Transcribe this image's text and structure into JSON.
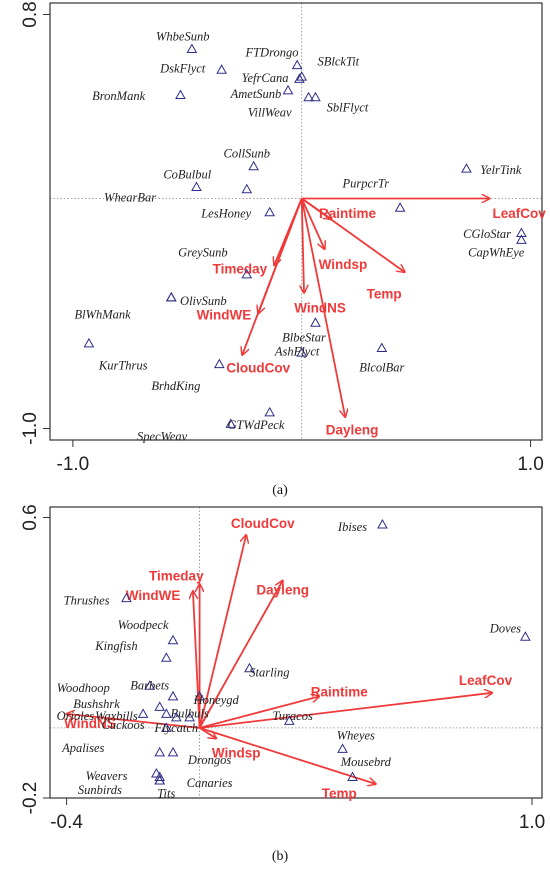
{
  "chart_data": [
    {
      "type": "scatter",
      "title": "",
      "caption": "(a)",
      "xlim": [
        -1.1,
        1.05
      ],
      "ylim": [
        -1.05,
        0.85
      ],
      "xticks": [
        -1.0,
        1.0
      ],
      "xtick_labels": [
        "-1.0",
        "1.0"
      ],
      "yticks": [
        0.8,
        -1.0
      ],
      "ytick_labels": [
        "0.8",
        "-1.0"
      ],
      "species": [
        {
          "name": "WhbeSunb",
          "x": -0.48,
          "y": 0.65,
          "lx": -0.52,
          "ly": 0.7,
          "anchor": "middle"
        },
        {
          "name": "DskFlyct",
          "x": -0.35,
          "y": 0.56,
          "lx": -0.52,
          "ly": 0.56,
          "anchor": "middle"
        },
        {
          "name": "FTDrongo",
          "x": -0.02,
          "y": 0.58,
          "lx": -0.13,
          "ly": 0.63,
          "anchor": "middle"
        },
        {
          "name": "SBlckTit",
          "x": 0.0,
          "y": 0.53,
          "lx": 0.16,
          "ly": 0.59,
          "anchor": "middle"
        },
        {
          "name": "YefrCana",
          "x": -0.01,
          "y": 0.52,
          "lx": -0.16,
          "ly": 0.52,
          "anchor": "middle"
        },
        {
          "name": "BronMank",
          "x": -0.53,
          "y": 0.45,
          "lx": -0.8,
          "ly": 0.44,
          "anchor": "middle"
        },
        {
          "name": "AmetSunb",
          "x": -0.06,
          "y": 0.47,
          "lx": -0.2,
          "ly": 0.45,
          "anchor": "middle"
        },
        {
          "name": "VillWeav",
          "x": 0.03,
          "y": 0.44,
          "lx": -0.14,
          "ly": 0.37,
          "anchor": "middle"
        },
        {
          "name": "SblFlyct",
          "x": 0.06,
          "y": 0.44,
          "lx": 0.2,
          "ly": 0.39,
          "anchor": "middle"
        },
        {
          "name": "CollSunb",
          "x": -0.21,
          "y": 0.14,
          "lx": -0.24,
          "ly": 0.19,
          "anchor": "middle"
        },
        {
          "name": "CoBulbul",
          "x": -0.46,
          "y": 0.05,
          "lx": -0.5,
          "ly": 0.1,
          "anchor": "middle"
        },
        {
          "name": "WhearBar",
          "x": -0.24,
          "y": 0.04,
          "lx": -0.75,
          "ly": 0.0,
          "anchor": "middle"
        },
        {
          "name": "LesHoney",
          "x": -0.14,
          "y": -0.06,
          "lx": -0.33,
          "ly": -0.07,
          "anchor": "middle"
        },
        {
          "name": "PurpcrTr",
          "x": 0.43,
          "y": -0.04,
          "lx": 0.28,
          "ly": 0.06,
          "anchor": "middle"
        },
        {
          "name": "YelrTink",
          "x": 0.72,
          "y": 0.13,
          "lx": 0.87,
          "ly": 0.12,
          "anchor": "middle"
        },
        {
          "name": "CGloStar",
          "x": 0.96,
          "y": -0.15,
          "lx": 0.81,
          "ly": -0.16,
          "anchor": "middle"
        },
        {
          "name": "CapWhEye",
          "x": 0.96,
          "y": -0.18,
          "lx": 0.85,
          "ly": -0.24,
          "anchor": "middle"
        },
        {
          "name": "GreySunb",
          "x": -0.24,
          "y": -0.33,
          "lx": -0.54,
          "ly": -0.24,
          "anchor": "start"
        },
        {
          "name": "OlivSunb",
          "x": -0.57,
          "y": -0.43,
          "lx": -0.43,
          "ly": -0.45,
          "anchor": "middle"
        },
        {
          "name": "BlWhMank",
          "x": -0.57,
          "y": -0.43,
          "lx": -0.87,
          "ly": -0.51,
          "anchor": "middle"
        },
        {
          "name": "BlbeStar",
          "x": 0.06,
          "y": -0.54,
          "lx": 0.01,
          "ly": -0.61,
          "anchor": "middle"
        },
        {
          "name": "AshFlyct",
          "x": 0.0,
          "y": -0.67,
          "lx": -0.02,
          "ly": -0.67,
          "anchor": "middle"
        },
        {
          "name": "KurThrus",
          "x": -0.93,
          "y": -0.63,
          "lx": -0.78,
          "ly": -0.73,
          "anchor": "middle"
        },
        {
          "name": "BrhdKing",
          "x": -0.36,
          "y": -0.72,
          "lx": -0.55,
          "ly": -0.82,
          "anchor": "middle"
        },
        {
          "name": "BlcolBar",
          "x": 0.35,
          "y": -0.65,
          "lx": 0.35,
          "ly": -0.74,
          "anchor": "middle"
        },
        {
          "name": "GTWdPeck",
          "x": -0.14,
          "y": -0.93,
          "lx": -0.2,
          "ly": -0.99,
          "anchor": "middle"
        },
        {
          "name": "SpecWeav",
          "x": -0.31,
          "y": -0.98,
          "lx": -0.61,
          "ly": -1.04,
          "anchor": "middle"
        }
      ],
      "vectors": [
        {
          "name": "LeafCov",
          "x": 0.82,
          "y": 0.0,
          "lx": 0.95,
          "ly": -0.07
        },
        {
          "name": "Raintime",
          "x": 0.13,
          "y": -0.09,
          "lx": 0.2,
          "ly": -0.07
        },
        {
          "name": "Windsp",
          "x": 0.1,
          "y": -0.22,
          "lx": 0.18,
          "ly": -0.29
        },
        {
          "name": "Temp",
          "x": 0.45,
          "y": -0.32,
          "lx": 0.36,
          "ly": -0.42
        },
        {
          "name": "WindNS",
          "x": 0.01,
          "y": -0.41,
          "lx": 0.08,
          "ly": -0.48
        },
        {
          "name": "Timeday",
          "x": -0.12,
          "y": -0.29,
          "lx": -0.27,
          "ly": -0.31
        },
        {
          "name": "WindWE",
          "x": -0.19,
          "y": -0.5,
          "lx": -0.34,
          "ly": -0.51
        },
        {
          "name": "CloudCov",
          "x": -0.26,
          "y": -0.68,
          "lx": -0.19,
          "ly": -0.74
        },
        {
          "name": "Dayleng",
          "x": 0.19,
          "y": -0.95,
          "lx": 0.22,
          "ly": -1.01
        }
      ]
    },
    {
      "type": "scatter",
      "title": "",
      "caption": "(b)",
      "xlim": [
        -0.45,
        1.03
      ],
      "ylim": [
        -0.2,
        0.63
      ],
      "xticks": [
        -0.4,
        1.0
      ],
      "xtick_labels": [
        "-0.4",
        "1.0"
      ],
      "yticks": [
        0.6,
        -0.2
      ],
      "ytick_labels": [
        "0.6",
        "-0.2"
      ],
      "species": [
        {
          "name": "Ibises",
          "x": 0.55,
          "y": 0.58,
          "lx": 0.46,
          "ly": 0.57,
          "anchor": "middle"
        },
        {
          "name": "Doves",
          "x": 0.98,
          "y": 0.26,
          "lx": 0.92,
          "ly": 0.28,
          "anchor": "middle"
        },
        {
          "name": "Thrushes",
          "x": -0.22,
          "y": 0.37,
          "lx": -0.34,
          "ly": 0.36,
          "anchor": "middle"
        },
        {
          "name": "Woodpeck",
          "x": -0.08,
          "y": 0.25,
          "lx": -0.17,
          "ly": 0.29,
          "anchor": "middle"
        },
        {
          "name": "Kingfish",
          "x": -0.1,
          "y": 0.2,
          "lx": -0.25,
          "ly": 0.23,
          "anchor": "middle"
        },
        {
          "name": "Starling",
          "x": 0.15,
          "y": 0.17,
          "lx": 0.21,
          "ly": 0.155,
          "anchor": "middle"
        },
        {
          "name": "Woodhoop",
          "x": -0.15,
          "y": 0.12,
          "lx": -0.35,
          "ly": 0.11,
          "anchor": "middle"
        },
        {
          "name": "Barbets",
          "x": -0.08,
          "y": 0.09,
          "lx": -0.15,
          "ly": 0.118,
          "anchor": "middle"
        },
        {
          "name": "Honeygd",
          "x": 0.0,
          "y": 0.09,
          "lx": 0.05,
          "ly": 0.077,
          "anchor": "middle"
        },
        {
          "name": "Bushshrk",
          "x": -0.12,
          "y": 0.06,
          "lx": -0.31,
          "ly": 0.065,
          "anchor": "middle"
        },
        {
          "name": "Orioles",
          "x": -0.17,
          "y": 0.04,
          "lx": -0.43,
          "ly": 0.03,
          "anchor": "start"
        },
        {
          "name": "Waxbills",
          "x": -0.1,
          "y": 0.04,
          "lx": -0.25,
          "ly": 0.03,
          "anchor": "middle"
        },
        {
          "name": "Bulbuls",
          "x": -0.03,
          "y": 0.03,
          "lx": -0.03,
          "ly": 0.038,
          "anchor": "middle"
        },
        {
          "name": "Cuckoos",
          "x": -0.1,
          "y": 0.0,
          "lx": -0.23,
          "ly": 0.005,
          "anchor": "middle"
        },
        {
          "name": "Flycatch",
          "x": -0.07,
          "y": 0.03,
          "lx": -0.07,
          "ly": -0.003,
          "anchor": "middle"
        },
        {
          "name": "Turacos",
          "x": 0.27,
          "y": 0.02,
          "lx": 0.28,
          "ly": 0.03,
          "anchor": "middle"
        },
        {
          "name": "Apalises",
          "x": -0.12,
          "y": -0.07,
          "lx": -0.35,
          "ly": -0.06,
          "anchor": "middle"
        },
        {
          "name": "Wheyes",
          "x": 0.43,
          "y": -0.06,
          "lx": 0.47,
          "ly": -0.025,
          "anchor": "middle"
        },
        {
          "name": "Drongos",
          "x": -0.08,
          "y": -0.07,
          "lx": 0.03,
          "ly": -0.095,
          "anchor": "middle"
        },
        {
          "name": "Mousebrd",
          "x": 0.46,
          "y": -0.14,
          "lx": 0.5,
          "ly": -0.1,
          "anchor": "middle"
        },
        {
          "name": "Weavers",
          "x": -0.12,
          "y": -0.14,
          "lx": -0.28,
          "ly": -0.14,
          "anchor": "middle"
        },
        {
          "name": "Sunbirds",
          "x": -0.13,
          "y": -0.13,
          "lx": -0.3,
          "ly": -0.18,
          "anchor": "middle"
        },
        {
          "name": "Canaries",
          "x": -0.12,
          "y": -0.15,
          "lx": 0.03,
          "ly": -0.16,
          "anchor": "middle"
        },
        {
          "name": "Tits",
          "x": -0.12,
          "y": -0.15,
          "lx": -0.1,
          "ly": -0.19,
          "anchor": "middle"
        }
      ],
      "vectors": [
        {
          "name": "CloudCov",
          "x": 0.14,
          "y": 0.55,
          "lx": 0.19,
          "ly": 0.58
        },
        {
          "name": "Timeday",
          "x": -0.02,
          "y": 0.39,
          "lx": -0.07,
          "ly": 0.43
        },
        {
          "name": "WindWE",
          "x": 0.0,
          "y": 0.41,
          "lx": -0.14,
          "ly": 0.375
        },
        {
          "name": "Dayleng",
          "x": 0.25,
          "y": 0.42,
          "lx": 0.25,
          "ly": 0.39
        },
        {
          "name": "LeafCov",
          "x": 0.88,
          "y": 0.1,
          "lx": 0.86,
          "ly": 0.133
        },
        {
          "name": "Raintime",
          "x": 0.36,
          "y": 0.09,
          "lx": 0.42,
          "ly": 0.1
        },
        {
          "name": "WindNS",
          "x": -0.4,
          "y": 0.04,
          "lx": -0.33,
          "ly": 0.01
        },
        {
          "name": "Windsp",
          "x": 0.05,
          "y": -0.03,
          "lx": 0.11,
          "ly": -0.075
        },
        {
          "name": "Temp",
          "x": 0.53,
          "y": -0.16,
          "lx": 0.42,
          "ly": -0.19
        }
      ]
    }
  ]
}
